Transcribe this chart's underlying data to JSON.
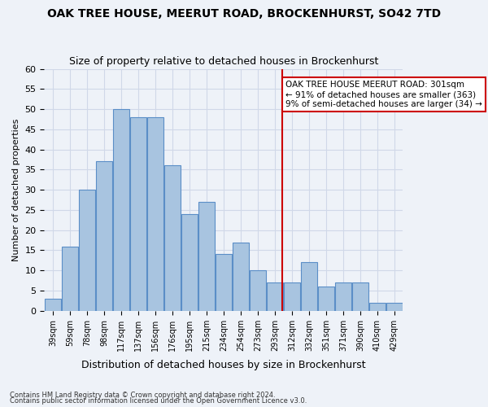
{
  "title": "OAK TREE HOUSE, MEERUT ROAD, BROCKENHURST, SO42 7TD",
  "subtitle": "Size of property relative to detached houses in Brockenhurst",
  "xlabel": "Distribution of detached houses by size in Brockenhurst",
  "ylabel": "Number of detached properties",
  "footnote1": "Contains HM Land Registry data © Crown copyright and database right 2024.",
  "footnote2": "Contains public sector information licensed under the Open Government Licence v3.0.",
  "categories": [
    "39sqm",
    "59sqm",
    "78sqm",
    "98sqm",
    "117sqm",
    "137sqm",
    "156sqm",
    "176sqm",
    "195sqm",
    "215sqm",
    "234sqm",
    "254sqm",
    "273sqm",
    "293sqm",
    "312sqm",
    "332sqm",
    "351sqm",
    "371sqm",
    "390sqm",
    "410sqm",
    "429sqm"
  ],
  "values": [
    3,
    16,
    30,
    37,
    50,
    48,
    48,
    36,
    24,
    27,
    14,
    17,
    10,
    7,
    7,
    12,
    6,
    7,
    7,
    2,
    2
  ],
  "bar_color": "#a8c4e0",
  "bar_edge_color": "#5b8ec7",
  "grid_color": "#d0d8e8",
  "background_color": "#eef2f8",
  "vline_color": "#cc0000",
  "annotation_text": "OAK TREE HOUSE MEERUT ROAD: 301sqm\n← 91% of detached houses are smaller (363)\n9% of semi-detached houses are larger (34) →",
  "annotation_box_color": "#ffffff",
  "annotation_border_color": "#cc0000",
  "ylim": [
    0,
    60
  ],
  "yticks": [
    0,
    5,
    10,
    15,
    20,
    25,
    30,
    35,
    40,
    45,
    50,
    55,
    60
  ]
}
